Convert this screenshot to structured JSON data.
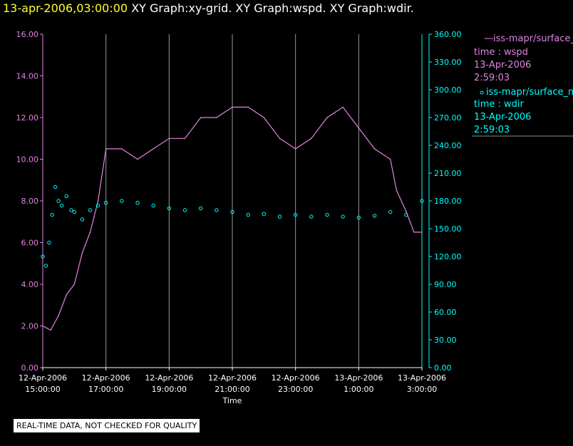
{
  "header": {
    "timestamp": "13-apr-2006,03:00:00",
    "titles": "XY Graph:xy-grid.  XY Graph:wspd.  XY Graph:wdir."
  },
  "colors": {
    "wspd": "#e183e1",
    "wdir": "#00ffff",
    "timestamp": "#ffff33",
    "axis_left": "#e183e1",
    "axis_right": "#00ffff",
    "grid": "#9a9a9a",
    "background": "#000000"
  },
  "legend": {
    "wspd": {
      "line1": "iss-mapr/surface_m",
      "line2": "time : wspd",
      "line3": "13-Apr-2006",
      "line4": "2:59:03"
    },
    "wdir": {
      "line1": "iss-mapr/surface_m",
      "line2": "time : wdir",
      "line3": "13-Apr-2006",
      "line4": "2:59:03"
    }
  },
  "disclaimer": "REAL-TIME DATA, NOT CHECKED FOR QUALITY",
  "chart_data": {
    "type": "line",
    "xlabel": "Time",
    "x_ticks": [
      {
        "line1": "12-Apr-2006",
        "line2": "15:00:00",
        "hour": 0
      },
      {
        "line1": "12-Apr-2006",
        "line2": "17:00:00",
        "hour": 2
      },
      {
        "line1": "12-Apr-2006",
        "line2": "19:00:00",
        "hour": 4
      },
      {
        "line1": "12-Apr-2006",
        "line2": "21:00:00",
        "hour": 6
      },
      {
        "line1": "12-Apr-2006",
        "line2": "23:00:00",
        "hour": 8
      },
      {
        "line1": "13-Apr-2006",
        "line2": "1:00:00",
        "hour": 10
      },
      {
        "line1": "13-Apr-2006",
        "line2": "3:00:00",
        "hour": 12
      }
    ],
    "x_range_hours": [
      0,
      12
    ],
    "y_left": {
      "lim": [
        0,
        16
      ],
      "ticks": [
        "0.00",
        "2.00",
        "4.00",
        "6.00",
        "8.00",
        "10.00",
        "12.00",
        "14.00",
        "16.00"
      ]
    },
    "y_right": {
      "lim": [
        0,
        360
      ],
      "ticks": [
        "0.00",
        "30.00",
        "60.00",
        "90.00",
        "120.00",
        "150.00",
        "180.00",
        "210.00",
        "240.00",
        "270.00",
        "300.00",
        "330.00",
        "360.00"
      ]
    },
    "grid": "vertical",
    "legend_position": "right",
    "series": [
      {
        "name": "wspd",
        "axis": "left",
        "style": "line",
        "hours": [
          0,
          0.25,
          0.5,
          0.75,
          1.0,
          1.25,
          1.5,
          1.75,
          2.0,
          2.5,
          3.0,
          3.5,
          4.0,
          4.5,
          5.0,
          5.5,
          6.0,
          6.5,
          7.0,
          7.5,
          8.0,
          8.5,
          9.0,
          9.5,
          10.0,
          10.5,
          11.0,
          11.2,
          11.5,
          11.75,
          12.0
        ],
        "values": [
          2.0,
          1.8,
          2.5,
          3.5,
          4.0,
          5.5,
          6.5,
          8.0,
          10.5,
          10.5,
          10.0,
          10.5,
          11.0,
          11.0,
          12.0,
          12.0,
          12.5,
          12.5,
          12.0,
          11.0,
          10.5,
          11.0,
          12.0,
          12.5,
          11.5,
          10.5,
          10.0,
          8.5,
          7.5,
          6.5,
          6.5
        ]
      },
      {
        "name": "wdir",
        "axis": "right",
        "style": "scatter",
        "hours": [
          0,
          0.1,
          0.2,
          0.3,
          0.4,
          0.5,
          0.6,
          0.75,
          0.9,
          1.0,
          1.25,
          1.5,
          1.75,
          2.0,
          2.5,
          3.0,
          3.5,
          4.0,
          4.5,
          5.0,
          5.5,
          6.0,
          6.5,
          7.0,
          7.5,
          8.0,
          8.5,
          9.0,
          9.5,
          10.0,
          10.5,
          11.0,
          11.5,
          12.0
        ],
        "values": [
          120,
          110,
          135,
          165,
          195,
          180,
          175,
          185,
          170,
          168,
          160,
          170,
          175,
          178,
          180,
          178,
          175,
          172,
          170,
          172,
          170,
          168,
          165,
          166,
          163,
          165,
          163,
          165,
          163,
          162,
          164,
          168,
          165,
          180
        ]
      }
    ]
  }
}
